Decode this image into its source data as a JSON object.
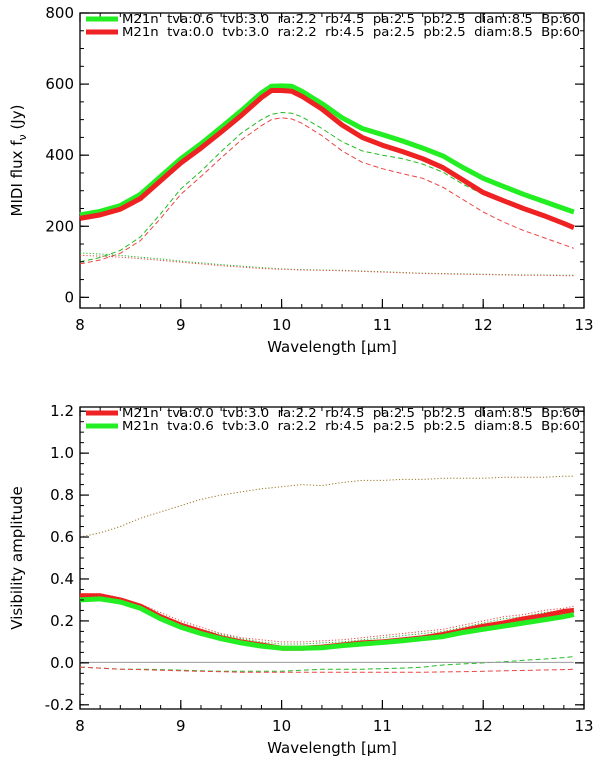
{
  "chart_data": [
    {
      "type": "line",
      "title": "",
      "xlabel": "Wavelength [μm]",
      "ylabel": "MIDI flux fν (Jy)",
      "ylabel_main": "MIDI flux f",
      "ylabel_sub": "ν",
      "ylabel_tail": " (Jy)",
      "xlim": [
        8,
        13
      ],
      "ylim": [
        -30,
        800
      ],
      "xticks": [
        8,
        9,
        10,
        11,
        12,
        13
      ],
      "yticks": [
        0,
        200,
        400,
        600,
        800
      ],
      "ytick_labels": [
        "0",
        "200",
        "400",
        "600",
        "800"
      ],
      "legend_position": "top-left",
      "legend": [
        {
          "label": "M21n  tva:0.6  tvb:3.0  ra:2.2  rb:4.5  pa:2.5  pb:2.5  diam:8.5  Bp:60",
          "color": "#22ee22"
        },
        {
          "label": "M21n  tva:0.0  tvb:3.0  ra:2.2  rb:4.5  pa:2.5  pb:2.5  diam:8.5  Bp:60",
          "color": "#ee2222"
        }
      ],
      "x": [
        8.0,
        8.2,
        8.4,
        8.6,
        8.8,
        9.0,
        9.2,
        9.4,
        9.6,
        9.8,
        9.9,
        10.0,
        10.1,
        10.2,
        10.4,
        10.6,
        10.8,
        11.0,
        11.2,
        11.4,
        11.6,
        11.8,
        12.0,
        12.2,
        12.4,
        12.6,
        12.8,
        12.9
      ],
      "series": [
        {
          "name": "green_total",
          "color": "#22ee22",
          "style": "thick",
          "values": [
            232,
            242,
            258,
            290,
            340,
            390,
            432,
            478,
            525,
            575,
            594,
            595,
            594,
            580,
            545,
            505,
            475,
            458,
            440,
            420,
            398,
            365,
            335,
            312,
            290,
            270,
            250,
            240
          ]
        },
        {
          "name": "red_total",
          "color": "#ee2222",
          "style": "thick",
          "values": [
            222,
            232,
            248,
            278,
            328,
            378,
            420,
            465,
            512,
            562,
            582,
            582,
            580,
            566,
            530,
            485,
            450,
            428,
            410,
            390,
            365,
            330,
            295,
            272,
            250,
            230,
            208,
            196
          ]
        },
        {
          "name": "green_component",
          "color": "#22bb22",
          "style": "dashed",
          "values": [
            100,
            112,
            132,
            170,
            235,
            305,
            355,
            410,
            462,
            500,
            515,
            520,
            518,
            508,
            475,
            438,
            412,
            400,
            390,
            375,
            352,
            318,
            290,
            268,
            248,
            228,
            208,
            200
          ]
        },
        {
          "name": "red_component",
          "color": "#ee4444",
          "style": "dashed",
          "values": [
            94,
            105,
            124,
            160,
            222,
            290,
            340,
            392,
            443,
            483,
            500,
            505,
            502,
            490,
            455,
            412,
            380,
            362,
            348,
            335,
            310,
            275,
            240,
            212,
            188,
            168,
            148,
            138
          ]
        },
        {
          "name": "green_dotted",
          "color": "#22bb22",
          "style": "dotted",
          "values": [
            125,
            122,
            118,
            113,
            108,
            102,
            97,
            92,
            88,
            84,
            82,
            80,
            79,
            78,
            77,
            76,
            74,
            72,
            70,
            68,
            67,
            66,
            65,
            64,
            63,
            63,
            62,
            62
          ]
        },
        {
          "name": "red_dotted",
          "color": "#ee4444",
          "style": "dotted",
          "values": [
            118,
            116,
            113,
            109,
            104,
            99,
            94,
            89,
            85,
            81,
            80,
            79,
            78,
            77,
            76,
            75,
            73,
            71,
            69,
            67,
            66,
            65,
            64,
            63,
            62,
            62,
            61,
            61
          ]
        }
      ]
    },
    {
      "type": "line",
      "title": "",
      "xlabel": "Wavelength [μm]",
      "ylabel": "Visibility amplitude",
      "xlim": [
        8,
        13
      ],
      "ylim": [
        -0.22,
        1.22
      ],
      "xticks": [
        8,
        9,
        10,
        11,
        12,
        13
      ],
      "yticks": [
        -0.2,
        0.0,
        0.2,
        0.4,
        0.6,
        0.8,
        1.0,
        1.2
      ],
      "ytick_labels": [
        "-0.2",
        "0.0",
        "0.2",
        "0.4",
        "0.6",
        "0.8",
        "1.0",
        "1.2"
      ],
      "legend_position": "top-left",
      "legend": [
        {
          "label": "M21n  tva:0.0  tvb:3.0  ra:2.2  rb:4.5  pa:2.5  pb:2.5  diam:8.5  Bp:60",
          "color": "#ee2222"
        },
        {
          "label": "M21n  tva:0.6  tvb:3.0  ra:2.2  rb:4.5  pa:2.5  pb:2.5  diam:8.5  Bp:60",
          "color": "#22ee22"
        }
      ],
      "x": [
        8.0,
        8.2,
        8.4,
        8.6,
        8.8,
        9.0,
        9.2,
        9.4,
        9.6,
        9.8,
        10.0,
        10.2,
        10.4,
        10.6,
        10.8,
        11.0,
        11.2,
        11.4,
        11.6,
        11.8,
        12.0,
        12.2,
        12.4,
        12.6,
        12.8,
        12.9
      ],
      "series": [
        {
          "name": "red_visibility",
          "color": "#ee2222",
          "style": "thick",
          "values": [
            0.32,
            0.32,
            0.3,
            0.27,
            0.22,
            0.18,
            0.15,
            0.12,
            0.1,
            0.085,
            0.07,
            0.07,
            0.075,
            0.085,
            0.095,
            0.1,
            0.11,
            0.12,
            0.135,
            0.155,
            0.175,
            0.19,
            0.21,
            0.225,
            0.245,
            0.25
          ]
        },
        {
          "name": "green_visibility",
          "color": "#22ee22",
          "style": "thick",
          "values": [
            0.3,
            0.305,
            0.29,
            0.26,
            0.21,
            0.17,
            0.14,
            0.115,
            0.095,
            0.08,
            0.07,
            0.07,
            0.072,
            0.082,
            0.09,
            0.097,
            0.105,
            0.115,
            0.125,
            0.145,
            0.16,
            0.175,
            0.19,
            0.205,
            0.22,
            0.23
          ]
        },
        {
          "name": "red_dotted_vis",
          "color": "#ee4444",
          "style": "dotted",
          "values": [
            0.33,
            0.33,
            0.31,
            0.28,
            0.24,
            0.2,
            0.17,
            0.14,
            0.12,
            0.11,
            0.1,
            0.1,
            0.105,
            0.11,
            0.12,
            0.13,
            0.14,
            0.15,
            0.16,
            0.18,
            0.2,
            0.22,
            0.23,
            0.25,
            0.26,
            0.27
          ]
        },
        {
          "name": "green_dotted_vis",
          "color": "#22bb22",
          "style": "dotted",
          "values": [
            0.32,
            0.32,
            0.3,
            0.27,
            0.23,
            0.19,
            0.16,
            0.135,
            0.115,
            0.1,
            0.09,
            0.09,
            0.095,
            0.1,
            0.11,
            0.12,
            0.13,
            0.14,
            0.15,
            0.17,
            0.19,
            0.21,
            0.22,
            0.24,
            0.25,
            0.26
          ]
        },
        {
          "name": "upper_dotted_vis",
          "color": "#997722",
          "style": "dotted",
          "values": [
            0.6,
            0.62,
            0.65,
            0.69,
            0.72,
            0.75,
            0.78,
            0.8,
            0.815,
            0.83,
            0.84,
            0.85,
            0.845,
            0.86,
            0.87,
            0.87,
            0.875,
            0.875,
            0.88,
            0.88,
            0.88,
            0.885,
            0.885,
            0.885,
            0.89,
            0.89
          ]
        },
        {
          "name": "green_dashed_vis",
          "color": "#22bb22",
          "style": "dashed",
          "values": [
            -0.02,
            -0.025,
            -0.03,
            -0.03,
            -0.032,
            -0.035,
            -0.038,
            -0.04,
            -0.04,
            -0.04,
            -0.04,
            -0.035,
            -0.03,
            -0.03,
            -0.03,
            -0.028,
            -0.025,
            -0.02,
            -0.01,
            -0.005,
            0.0,
            0.005,
            0.012,
            0.018,
            0.025,
            0.03
          ]
        },
        {
          "name": "red_dashed_vis",
          "color": "#ee4444",
          "style": "dashed",
          "values": [
            -0.02,
            -0.025,
            -0.03,
            -0.032,
            -0.035,
            -0.038,
            -0.04,
            -0.042,
            -0.045,
            -0.045,
            -0.045,
            -0.045,
            -0.045,
            -0.045,
            -0.045,
            -0.045,
            -0.045,
            -0.045,
            -0.043,
            -0.042,
            -0.04,
            -0.038,
            -0.036,
            -0.034,
            -0.032,
            -0.03
          ]
        },
        {
          "name": "gray_flat",
          "color": "#999999",
          "style": "solid",
          "values": [
            0.002,
            0.002,
            0.002,
            0.002,
            0.002,
            0.002,
            0.002,
            0.002,
            0.002,
            0.002,
            0.002,
            0.002,
            0.002,
            0.002,
            0.002,
            0.002,
            0.002,
            0.002,
            0.002,
            0.002,
            0.002,
            0.002,
            0.002,
            0.002,
            0.002,
            0.002
          ]
        }
      ]
    }
  ]
}
